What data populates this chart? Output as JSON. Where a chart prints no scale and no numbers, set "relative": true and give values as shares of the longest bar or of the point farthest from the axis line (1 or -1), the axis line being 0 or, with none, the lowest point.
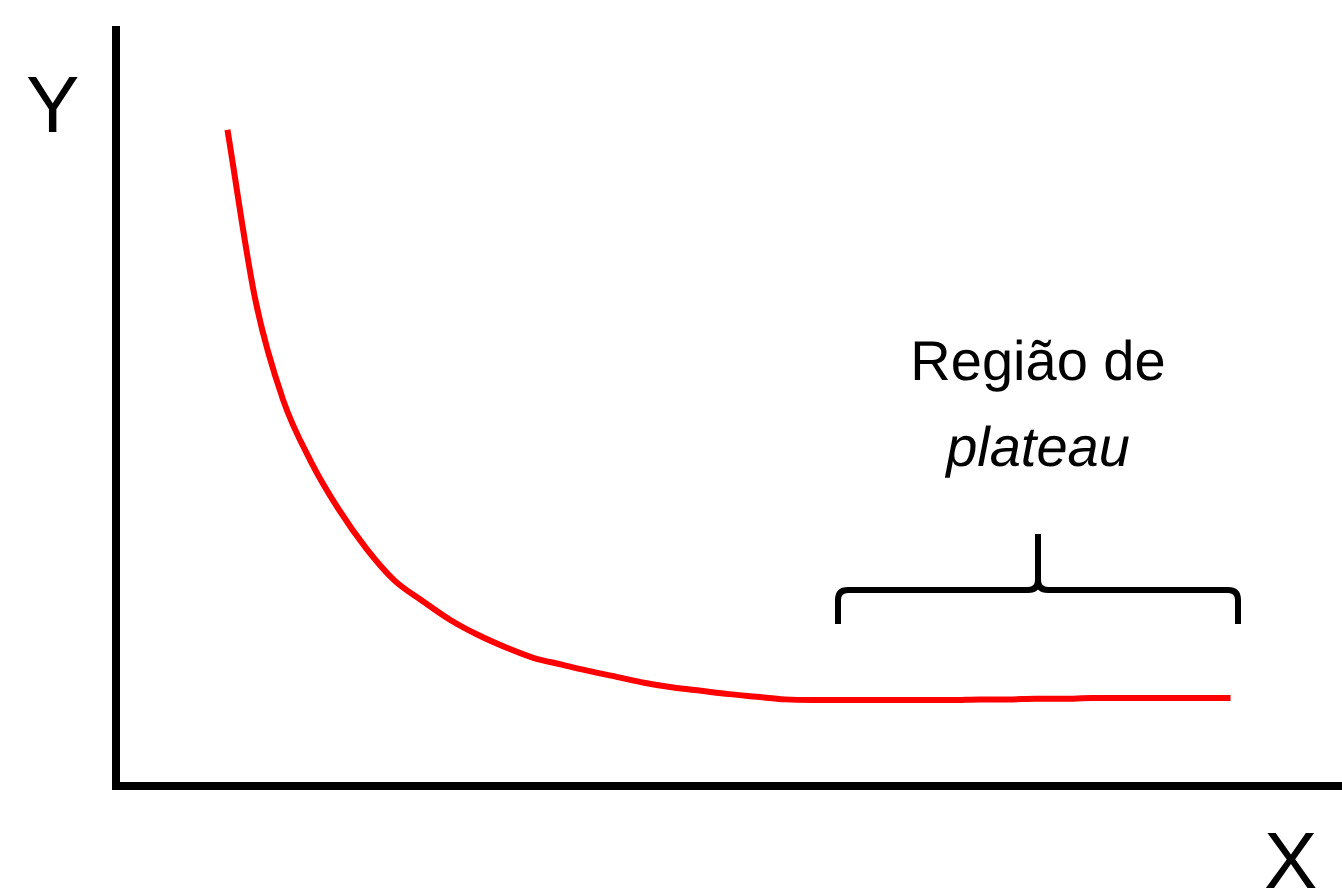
{
  "chart_data": {
    "type": "line",
    "relative": true,
    "xlabel": "X",
    "ylabel": "Y",
    "annotations": [
      "Região de plateau"
    ],
    "tick_labels": false,
    "marker": "none",
    "color": "#ff0000",
    "categories": [
      null,
      null,
      null,
      null,
      null,
      null,
      null,
      null,
      null,
      null,
      null,
      null,
      null,
      null,
      null,
      null,
      null,
      null,
      null,
      null,
      null,
      null,
      null,
      null,
      null,
      null,
      null,
      null,
      null,
      null,
      null,
      null,
      null,
      null,
      null,
      null,
      null,
      null,
      null,
      null,
      null,
      null,
      null,
      null,
      null
    ],
    "values": [
      null,
      null,
      null,
      null,
      1,
      0.741,
      0.588,
      0.494,
      0.421,
      0.361,
      0.313,
      0.282,
      0.253,
      0.23,
      0.211,
      0.195,
      0.185,
      0.175,
      0.166,
      0.157,
      0.15,
      0.145,
      0.14,
      0.136,
      0.132,
      0.131,
      0.131,
      0.131,
      0.131,
      0.131,
      0.131,
      0.132,
      0.132,
      0.133,
      0.133,
      0.134,
      0.134,
      0.134,
      0.134,
      0.134,
      0.134,
      null,
      null,
      null,
      null
    ]
  }
}
